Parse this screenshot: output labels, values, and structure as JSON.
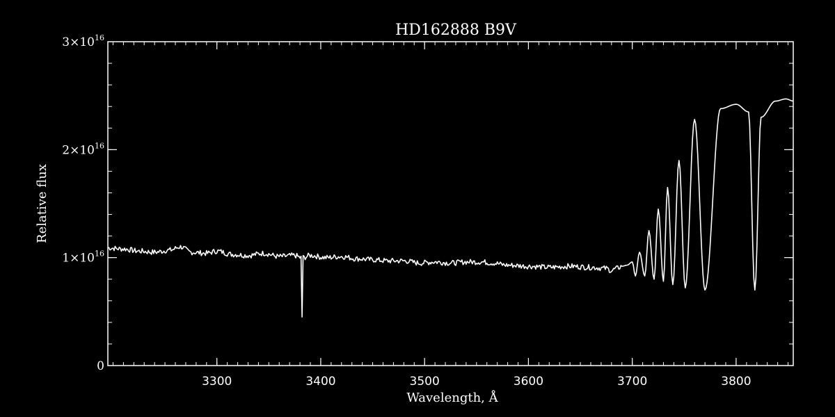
{
  "chart_data": {
    "type": "line",
    "title": "HD162888   B9V",
    "xlabel": "Wavelength, Å",
    "ylabel": "Relative flux",
    "xlim": [
      3195,
      3855
    ],
    "ylim": [
      0,
      3e+16
    ],
    "x_ticks": [
      {
        "value": 3300,
        "label": "3300"
      },
      {
        "value": 3400,
        "label": "3400"
      },
      {
        "value": 3500,
        "label": "3500"
      },
      {
        "value": 3600,
        "label": "3600"
      },
      {
        "value": 3700,
        "label": "3700"
      },
      {
        "value": 3800,
        "label": "3800"
      }
    ],
    "y_ticks": [
      {
        "value": 0,
        "label": "0",
        "mantissa": "0",
        "exponent": ""
      },
      {
        "value": 1e+16,
        "label": "1×10¹⁶",
        "mantissa": "1×10",
        "exponent": "16"
      },
      {
        "value": 2e+16,
        "label": "2×10¹⁶",
        "mantissa": "2×10",
        "exponent": "16"
      },
      {
        "value": 3e+16,
        "label": "3×10¹⁶",
        "mantissa": "3×10",
        "exponent": "16"
      }
    ],
    "grid": false,
    "colors": {
      "background": "#000000",
      "foreground": "#ffffff"
    },
    "series": [
      {
        "x": [
          3195,
          3210,
          3225,
          3240,
          3255,
          3265,
          3275,
          3290,
          3300,
          3315,
          3330,
          3345,
          3360,
          3375,
          3381,
          3382,
          3383,
          3390,
          3405,
          3420,
          3435,
          3450,
          3465,
          3480,
          3495,
          3510,
          3525,
          3540,
          3555,
          3565,
          3580,
          3600,
          3620,
          3640,
          3660,
          3675,
          3680,
          3685,
          3690,
          3695,
          3700,
          3703,
          3707,
          3712,
          3716,
          3721,
          3725,
          3730,
          3734,
          3739,
          3745,
          3751,
          3760,
          3770,
          3785,
          3800,
          3812,
          3818,
          3824,
          3838,
          3848,
          3855
        ],
        "y": [
          1.09e+16,
          1.08e+16,
          1.06e+16,
          1.05e+16,
          1.07e+16,
          1.1e+16,
          1.05e+16,
          1.04e+16,
          1.06e+16,
          1.03e+16,
          1.02e+16,
          1.04e+16,
          1.01e+16,
          1.02e+16,
          1e+16,
          4500000000000000.0,
          1e+16,
          1.02e+16,
          1e+16,
          1.01e+16,
          9900000000000000.0,
          9800000000000000.0,
          9700000000000000.0,
          9700000000000000.0,
          9500000000000000.0,
          9600000000000000.0,
          9500000000000000.0,
          9600000000000000.0,
          9600000000000000.0,
          9500000000000000.0,
          9300000000000000.0,
          9200000000000000.0,
          9100000000000000.0,
          9200000000000000.0,
          9100000000000000.0,
          9000000000000000.0,
          8800000000000000.0,
          9000000000000000.0,
          9200000000000000.0,
          9300000000000000.0,
          9600000000000000.0,
          8300000000000000.0,
          1.05e+16,
          8300000000000000.0,
          1.25e+16,
          8000000000000000.0,
          1.45e+16,
          7800000000000000.0,
          1.65e+16,
          7500000000000000.0,
          1.9e+16,
          7200000000000000.0,
          2.28e+16,
          7000000000000000.0,
          2.38e+16,
          2.42e+16,
          2.35e+16,
          7000000000000000.0,
          2.3e+16,
          2.45e+16,
          2.47e+16,
          2.45e+16
        ]
      }
    ]
  }
}
